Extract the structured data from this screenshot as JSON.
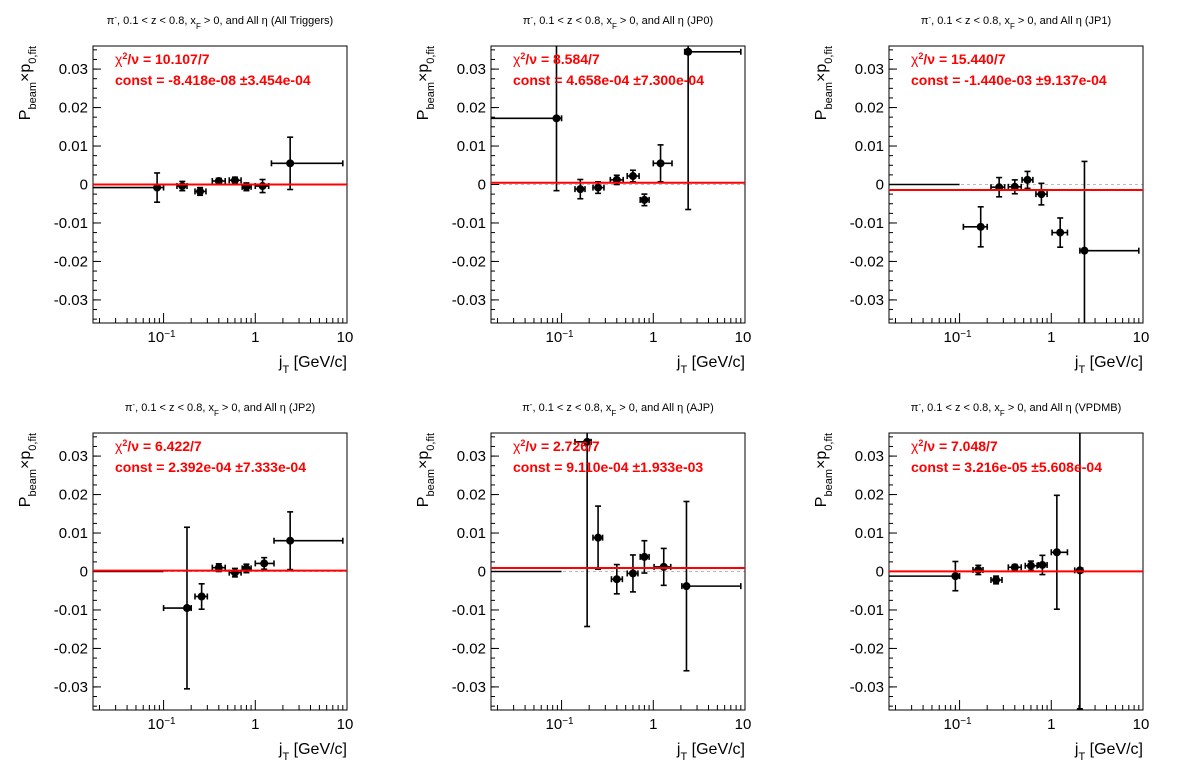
{
  "figure": {
    "y_title": {
      "main": "P",
      "sub1": "beam",
      "times": "×p",
      "sub2": "0,fit"
    },
    "x_title": {
      "main": "j",
      "sub": "T",
      "unit": "[GeV/c]"
    },
    "x_tick_labels": [
      "10",
      "−1",
      "1",
      "10"
    ],
    "y_tick_labels": [
      "0.03",
      "0.02",
      "0.01",
      "0",
      "-0.01",
      "-0.02",
      "-0.03"
    ],
    "colors": {
      "fit": "#ff0000",
      "points": "#000000",
      "zero_line": "#bbbbbb",
      "frame": "#000000"
    }
  },
  "chart_data": [
    {
      "type": "scatter",
      "xscale": "log",
      "xlim": [
        0.017,
        10
      ],
      "ylim": [
        -0.036,
        0.036
      ],
      "title": {
        "pre": "π",
        "sup": "-",
        "mid": ", 0.1 < z < 0.8, x",
        "sub": "F",
        "post": " > 0, and All  η (All Triggers)"
      },
      "stat_chi2": "/ν = 10.107/7",
      "stat_const": "const = -8.418e-08  ±3.454e-04",
      "fit": 0.0,
      "points": [
        {
          "x": 0.085,
          "y": -0.0008,
          "xlo": 0.017,
          "xhi": 0.1,
          "yerr": 0.0038
        },
        {
          "x": 0.16,
          "y": -0.0004,
          "xlo": 0.14,
          "xhi": 0.18,
          "yerr": 0.0012
        },
        {
          "x": 0.25,
          "y": -0.0018,
          "xlo": 0.22,
          "xhi": 0.29,
          "yerr": 0.001
        },
        {
          "x": 0.4,
          "y": 0.0009,
          "xlo": 0.34,
          "xhi": 0.47,
          "yerr": 0.0007
        },
        {
          "x": 0.6,
          "y": 0.0011,
          "xlo": 0.52,
          "xhi": 0.7,
          "yerr": 0.0008
        },
        {
          "x": 0.8,
          "y": -0.0006,
          "xlo": 0.72,
          "xhi": 0.9,
          "yerr": 0.001
        },
        {
          "x": 1.2,
          "y": -0.0004,
          "xlo": 1.0,
          "xhi": 1.4,
          "yerr": 0.0017
        },
        {
          "x": 2.4,
          "y": 0.0055,
          "xlo": 1.5,
          "xhi": 9.0,
          "yerr": 0.0068
        }
      ]
    },
    {
      "type": "scatter",
      "xscale": "log",
      "xlim": [
        0.017,
        10
      ],
      "ylim": [
        -0.036,
        0.036
      ],
      "title": {
        "pre": "π",
        "sup": "-",
        "mid": ", 0.1 < z < 0.8, x",
        "sub": "F",
        "post": " > 0, and All η (JP0)"
      },
      "stat_chi2": "/ν = 8.584/7",
      "stat_const": "const = 4.658e-04  ±7.300e-04",
      "fit": 0.000466,
      "points": [
        {
          "x": 0.088,
          "y": 0.0172,
          "xlo": 0.017,
          "xhi": 0.1,
          "yerr": 0.0188
        },
        {
          "x": 0.16,
          "y": -0.0012,
          "xlo": 0.14,
          "xhi": 0.18,
          "yerr": 0.0025
        },
        {
          "x": 0.25,
          "y": -0.0008,
          "xlo": 0.22,
          "xhi": 0.29,
          "yerr": 0.0015
        },
        {
          "x": 0.4,
          "y": 0.0012,
          "xlo": 0.34,
          "xhi": 0.47,
          "yerr": 0.0012
        },
        {
          "x": 0.6,
          "y": 0.0022,
          "xlo": 0.52,
          "xhi": 0.7,
          "yerr": 0.0015
        },
        {
          "x": 0.8,
          "y": -0.004,
          "xlo": 0.72,
          "xhi": 0.9,
          "yerr": 0.0015
        },
        {
          "x": 1.2,
          "y": 0.0055,
          "xlo": 1.0,
          "xhi": 1.6,
          "yerr": 0.0048
        },
        {
          "x": 2.4,
          "y": 0.0345,
          "xlo": 2.2,
          "xhi": 9.0,
          "yerr": 0.041
        }
      ]
    },
    {
      "type": "scatter",
      "xscale": "log",
      "xlim": [
        0.017,
        10
      ],
      "ylim": [
        -0.036,
        0.036
      ],
      "title": {
        "pre": "π",
        "sup": "-",
        "mid": ", 0.1 < z < 0.8, x",
        "sub": "F",
        "post": " > 0, and All η (JP1)"
      },
      "stat_chi2": "/ν = 15.440/7",
      "stat_const": "const = -1.440e-03  ±9.137e-04",
      "fit": -0.00144,
      "points": [
        {
          "x": 0.17,
          "y": -0.011,
          "xlo": 0.11,
          "xhi": 0.2,
          "yerr": 0.0052
        },
        {
          "x": 0.27,
          "y": -0.0007,
          "xlo": 0.22,
          "xhi": 0.31,
          "yerr": 0.0025
        },
        {
          "x": 0.4,
          "y": -0.0006,
          "xlo": 0.34,
          "xhi": 0.47,
          "yerr": 0.0018
        },
        {
          "x": 0.55,
          "y": 0.0012,
          "xlo": 0.48,
          "xhi": 0.63,
          "yerr": 0.0022
        },
        {
          "x": 0.78,
          "y": -0.0025,
          "xlo": 0.68,
          "xhi": 0.9,
          "yerr": 0.0028
        },
        {
          "x": 1.25,
          "y": -0.0125,
          "xlo": 1.02,
          "xhi": 1.5,
          "yerr": 0.0038
        },
        {
          "x": 2.3,
          "y": -0.0172,
          "xlo": 2.05,
          "xhi": 9.0,
          "yerr": 0.0232
        }
      ],
      "segments": [
        {
          "x1": 0.017,
          "x2": 0.1,
          "y": 0.0
        }
      ]
    },
    {
      "type": "scatter",
      "xscale": "log",
      "xlim": [
        0.017,
        10
      ],
      "ylim": [
        -0.036,
        0.036
      ],
      "title": {
        "pre": "π",
        "sup": "-",
        "mid": ", 0.1 < z < 0.8, x",
        "sub": "F",
        "post": " > 0, and All η (JP2)"
      },
      "stat_chi2": "/ν = 6.422/7",
      "stat_const": "const = 2.392e-04  ±7.333e-04",
      "fit": 0.000239,
      "points": [
        {
          "x": 0.18,
          "y": -0.0095,
          "xlo": 0.1,
          "xhi": 0.2,
          "yerr": 0.021
        },
        {
          "x": 0.26,
          "y": -0.0065,
          "xlo": 0.22,
          "xhi": 0.3,
          "yerr": 0.0033
        },
        {
          "x": 0.4,
          "y": 0.001,
          "xlo": 0.34,
          "xhi": 0.47,
          "yerr": 0.001
        },
        {
          "x": 0.6,
          "y": -0.0003,
          "xlo": 0.52,
          "xhi": 0.7,
          "yerr": 0.0011
        },
        {
          "x": 0.8,
          "y": 0.0008,
          "xlo": 0.72,
          "xhi": 0.9,
          "yerr": 0.0011
        },
        {
          "x": 1.25,
          "y": 0.0021,
          "xlo": 1.0,
          "xhi": 1.6,
          "yerr": 0.0015
        },
        {
          "x": 2.4,
          "y": 0.008,
          "xlo": 1.6,
          "xhi": 9.0,
          "yerr": 0.0075
        }
      ],
      "segments": [
        {
          "x1": 0.017,
          "x2": 0.1,
          "y": 0.0
        }
      ]
    },
    {
      "type": "scatter",
      "xscale": "log",
      "xlim": [
        0.017,
        10
      ],
      "ylim": [
        -0.036,
        0.036
      ],
      "title": {
        "pre": "π",
        "sup": "-",
        "mid": ", 0.1 < z < 0.8, x",
        "sub": "F",
        "post": " > 0, and All  η (AJP)"
      },
      "stat_chi2": "/ν = 2.726/7",
      "stat_const": "const = 9.110e-04  ±1.933e-03",
      "fit": 0.000911,
      "points": [
        {
          "x": 0.19,
          "y": 0.0337,
          "xlo": 0.14,
          "xhi": 0.21,
          "yerr": 0.048
        },
        {
          "x": 0.25,
          "y": 0.0088,
          "xlo": 0.22,
          "xhi": 0.28,
          "yerr": 0.0082
        },
        {
          "x": 0.4,
          "y": -0.002,
          "xlo": 0.35,
          "xhi": 0.46,
          "yerr": 0.0038
        },
        {
          "x": 0.6,
          "y": -0.0005,
          "xlo": 0.52,
          "xhi": 0.68,
          "yerr": 0.0048
        },
        {
          "x": 0.8,
          "y": 0.0038,
          "xlo": 0.72,
          "xhi": 0.9,
          "yerr": 0.0042
        },
        {
          "x": 1.3,
          "y": 0.0012,
          "xlo": 1.02,
          "xhi": 1.55,
          "yerr": 0.0048
        },
        {
          "x": 2.3,
          "y": -0.0038,
          "xlo": 2.05,
          "xhi": 9.0,
          "yerr": 0.022
        }
      ],
      "segments": [
        {
          "x1": 0.017,
          "x2": 0.1,
          "y": 0.0
        }
      ]
    },
    {
      "type": "scatter",
      "xscale": "log",
      "xlim": [
        0.017,
        10
      ],
      "ylim": [
        -0.036,
        0.036
      ],
      "title": {
        "pre": "π",
        "sup": "-",
        "mid": ", 0.1 < z < 0.8, x",
        "sub": "F",
        "post": " > 0, and All  η (VPDMB)"
      },
      "stat_chi2": "/ν = 7.048/7",
      "stat_const": "const = 3.216e-05  ±5.608e-04",
      "fit": 3.22e-05,
      "points": [
        {
          "x": 0.09,
          "y": -0.0012,
          "xlo": 0.017,
          "xhi": 0.1,
          "yerr": 0.0038
        },
        {
          "x": 0.16,
          "y": 0.0004,
          "xlo": 0.14,
          "xhi": 0.18,
          "yerr": 0.0012
        },
        {
          "x": 0.25,
          "y": -0.0022,
          "xlo": 0.22,
          "xhi": 0.29,
          "yerr": 0.001
        },
        {
          "x": 0.4,
          "y": 0.0011,
          "xlo": 0.34,
          "xhi": 0.47,
          "yerr": 0.0007
        },
        {
          "x": 0.6,
          "y": 0.0015,
          "xlo": 0.52,
          "xhi": 0.7,
          "yerr": 0.0012
        },
        {
          "x": 0.8,
          "y": 0.0017,
          "xlo": 0.72,
          "xhi": 0.9,
          "yerr": 0.0025
        },
        {
          "x": 1.15,
          "y": 0.005,
          "xlo": 1.0,
          "xhi": 1.5,
          "yerr": 0.0148
        },
        {
          "x": 2.05,
          "y": 0.0003,
          "xlo": 1.8,
          "xhi": 2.2,
          "yerr": 0.036
        }
      ]
    }
  ]
}
